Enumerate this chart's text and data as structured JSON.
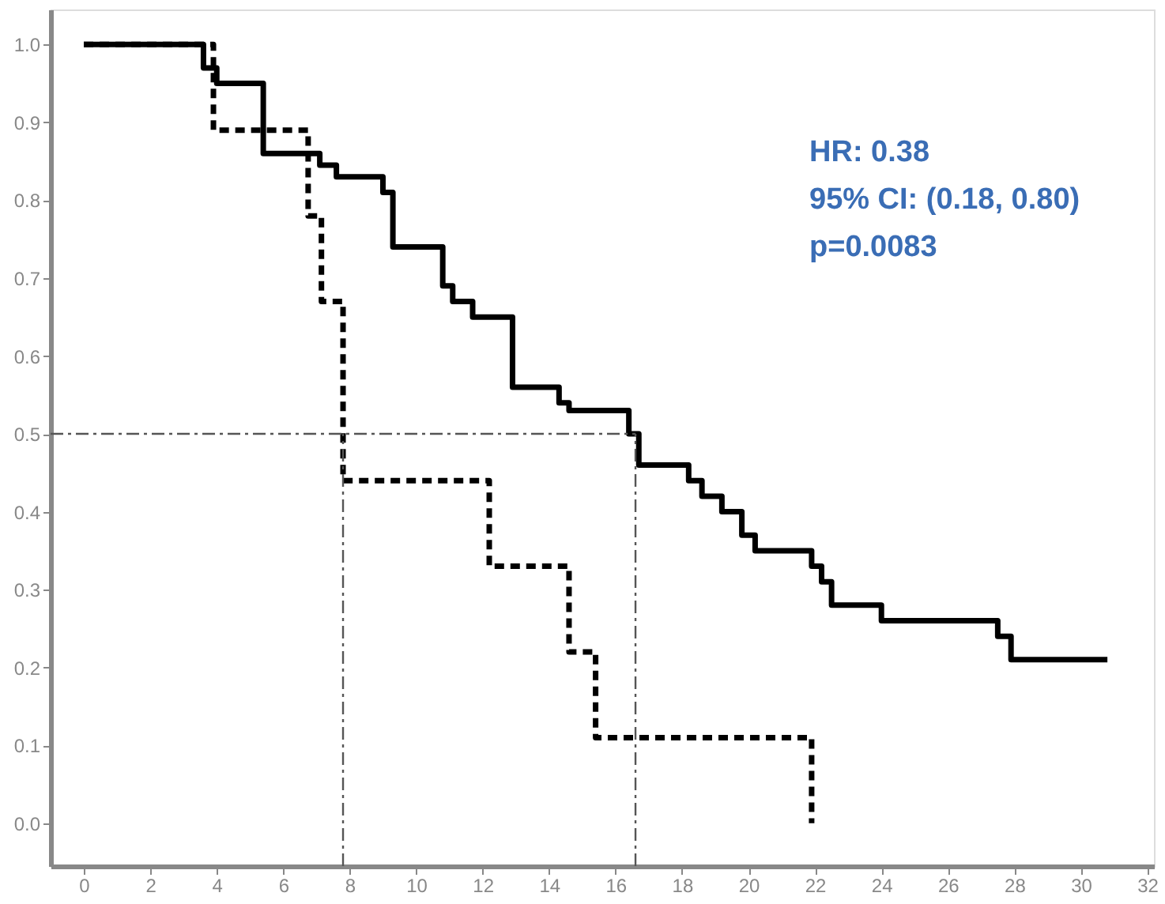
{
  "chart_data": {
    "type": "step",
    "series": [
      {
        "color": "#000000",
        "line_style": "solid",
        "x": [
          0,
          3.6,
          4.0,
          5.4,
          7.1,
          7.6,
          9.0,
          9.3,
          10.8,
          11.1,
          11.7,
          12.9,
          14.3,
          14.6,
          16.4,
          16.7,
          18.2,
          18.6,
          19.2,
          19.8,
          20.2,
          21.9,
          22.2,
          22.5,
          24.0,
          27.5,
          27.9,
          30.8
        ],
        "values": [
          1.0,
          0.97,
          0.95,
          0.86,
          0.845,
          0.83,
          0.81,
          0.74,
          0.69,
          0.67,
          0.65,
          0.56,
          0.54,
          0.53,
          0.5,
          0.46,
          0.44,
          0.42,
          0.4,
          0.37,
          0.35,
          0.33,
          0.31,
          0.28,
          0.26,
          0.24,
          0.21,
          0.21
        ]
      },
      {
        "color": "#000000",
        "line_style": "dashed",
        "x": [
          0,
          3.9,
          6.75,
          7.15,
          7.8,
          12.2,
          14.6,
          15.4,
          21.9
        ],
        "values": [
          1.0,
          0.89,
          0.78,
          0.67,
          0.44,
          0.33,
          0.22,
          0.11,
          0.0
        ]
      }
    ],
    "xlim": [
      -1.0,
      32.2
    ],
    "ylim": [
      -0.055,
      1.045
    ],
    "xticks": [
      0,
      2,
      4,
      6,
      8,
      10,
      12,
      14,
      16,
      18,
      20,
      22,
      24,
      26,
      28,
      30,
      32
    ],
    "yticks": [
      {
        "value": 0,
        "label": "0.0"
      },
      0.1,
      0.2,
      0.3,
      0.4,
      0.5,
      0.6,
      0.7,
      0.8,
      0.9,
      {
        "value": 1,
        "label": "1.0"
      }
    ],
    "ref_lines": [
      {
        "axis": "y",
        "value": 0.5,
        "line_style": "dashed"
      },
      {
        "axis": "x",
        "value": 7.8,
        "line_style": "dashed"
      },
      {
        "axis": "x",
        "value": 16.6,
        "line_style": "dashed"
      }
    ],
    "annotations": [
      "HR: 0.38",
      "95% CI: (0.18, 0.80)",
      "p=0.0083"
    ],
    "grid": false,
    "marker": "none"
  }
}
